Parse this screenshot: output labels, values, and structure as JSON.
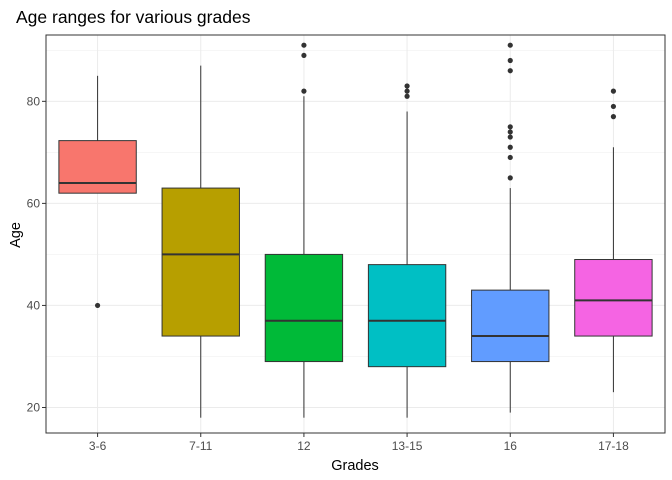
{
  "chart_data": {
    "type": "boxplot",
    "title": "Age ranges for various grades",
    "xlabel": "Grades",
    "ylabel": "Age",
    "ylim": [
      15,
      93
    ],
    "yticks": [
      20,
      40,
      60,
      80
    ],
    "grid": true,
    "legend": "none",
    "categories": [
      "3-6",
      "7-11",
      "12",
      "13-15",
      "16",
      "17-18"
    ],
    "boxes": [
      {
        "category": "3-6",
        "color": "#F8766D",
        "whisker_low": 62,
        "q1": 62,
        "median": 64,
        "q3": 72.3,
        "whisker_high": 85,
        "outliers": [
          40
        ]
      },
      {
        "category": "7-11",
        "color": "#B79F00",
        "whisker_low": 18,
        "q1": 34,
        "median": 50,
        "q3": 63,
        "whisker_high": 87,
        "outliers": []
      },
      {
        "category": "12",
        "color": "#00BA38",
        "whisker_low": 18,
        "q1": 29,
        "median": 37,
        "q3": 50,
        "whisker_high": 81,
        "outliers": [
          82,
          89,
          91
        ]
      },
      {
        "category": "13-15",
        "color": "#00BFC4",
        "whisker_low": 18,
        "q1": 28,
        "median": 37,
        "q3": 48,
        "whisker_high": 78,
        "outliers": [
          81,
          82,
          83
        ]
      },
      {
        "category": "16",
        "color": "#619CFF",
        "whisker_low": 19,
        "q1": 29,
        "median": 34,
        "q3": 43,
        "whisker_high": 63,
        "outliers": [
          65,
          69,
          71,
          73,
          74,
          75,
          86,
          88,
          91
        ]
      },
      {
        "category": "17-18",
        "color": "#F564E3",
        "whisker_low": 23,
        "q1": 34,
        "median": 41,
        "q3": 49,
        "whisker_high": 71,
        "outliers": [
          77,
          79,
          82
        ]
      }
    ]
  }
}
